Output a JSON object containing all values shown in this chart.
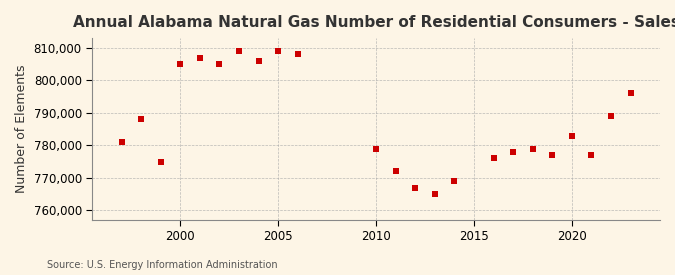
{
  "title": "Annual Alabama Natural Gas Number of Residential Consumers - Sales",
  "ylabel": "Number of Elements",
  "source": "Source: U.S. Energy Information Administration",
  "background_color": "#fdf5e6",
  "marker_color": "#cc0000",
  "years": [
    1997,
    1998,
    1999,
    2000,
    2001,
    2002,
    2003,
    2004,
    2005,
    2006,
    2010,
    2011,
    2012,
    2013,
    2014,
    2016,
    2017,
    2018,
    2019,
    2020,
    2021,
    2022,
    2023
  ],
  "values": [
    781000,
    788000,
    775000,
    805000,
    807000,
    805000,
    809000,
    806000,
    809000,
    808000,
    779000,
    772000,
    767000,
    765000,
    769000,
    776000,
    778000,
    779000,
    777000,
    783000,
    777000,
    789000,
    796000
  ],
  "ylim": [
    757000,
    813000
  ],
  "yticks": [
    760000,
    770000,
    780000,
    790000,
    800000,
    810000
  ],
  "xlim": [
    1995.5,
    2024.5
  ],
  "xticks": [
    2000,
    2005,
    2010,
    2015,
    2020
  ],
  "grid_color": "#aaaaaa",
  "title_fontsize": 11,
  "label_fontsize": 9,
  "tick_fontsize": 8.5
}
